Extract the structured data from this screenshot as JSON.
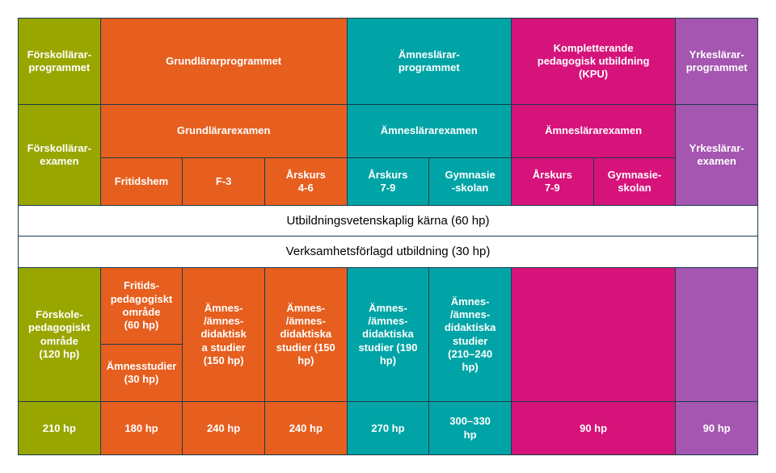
{
  "colors": {
    "olive": "#99a600",
    "orange": "#e65f1f",
    "teal": "#00a4a6",
    "magenta": "#d6137a",
    "purple": "#a456b0",
    "border": "#1a3a4a",
    "white": "#ffffff",
    "black": "#000000"
  },
  "header": {
    "forskollarar": "Förskollärar-\nprogrammet",
    "grundlarar": "Grundlärarprogrammet",
    "amneslarar": "Ämneslärar-\nprogrammet",
    "kpu": "Kompletterande\npedagogisk utbildning\n(KPU)",
    "yrkeslarar": "Yrkeslärar-\nprogrammet"
  },
  "examen": {
    "forskollarar": "Förskollärar-\nexamen",
    "grundlarar": "Grundlärarexamen",
    "amneslarar": "Ämneslärarexamen",
    "kpu_amneslarar": "Ämneslärarexamen",
    "yrkeslarar": "Yrkeslärar-\nexamen"
  },
  "sub": {
    "fritidshem": "Fritidshem",
    "f3": "F-3",
    "arskurs46": "Årskurs\n4-6",
    "arskurs79_a": "Årskurs\n7-9",
    "gymnasie_a": "Gymnasie\n-skolan",
    "arskurs79_b": "Årskurs\n7-9",
    "gymnasie_b": "Gymnasie-\nskolan"
  },
  "core": {
    "utbildnings": "Utbildningsvetenskaplig kärna (60 hp)",
    "verksamhets": "Verksamhetsförlagd utbildning (30 hp)"
  },
  "content": {
    "forskole": "Förskole-\npedagogiskt\nområde\n(120 hp)",
    "fritids": "Fritids-\npedagogiskt\nområde\n(60 hp)",
    "amnesstudier": "Ämnesstudier\n(30 hp)",
    "amnes150_a": "Ämnes-\n/ämnes-\ndidaktisk\na studier\n(150 hp)",
    "amnes150_b": "Ämnes-\n/ämnes-\ndidaktiska\nstudier (150\nhp)",
    "amnes190": "Ämnes-\n/ämnes-\ndidaktiska\nstudier (190\nhp)",
    "amnes210": "Ämnes-\n/ämnes-\ndidaktiska\nstudier\n(210–240\nhp)"
  },
  "totals": {
    "t1": "210 hp",
    "t2": "180 hp",
    "t3": "240 hp",
    "t4": "240 hp",
    "t5": "270 hp",
    "t6": "300–330\nhp",
    "t7": "90 hp",
    "t8": "90 hp"
  },
  "layout": {
    "font_size_header": 14,
    "font_size_cell": 13,
    "font_size_core": 15
  }
}
